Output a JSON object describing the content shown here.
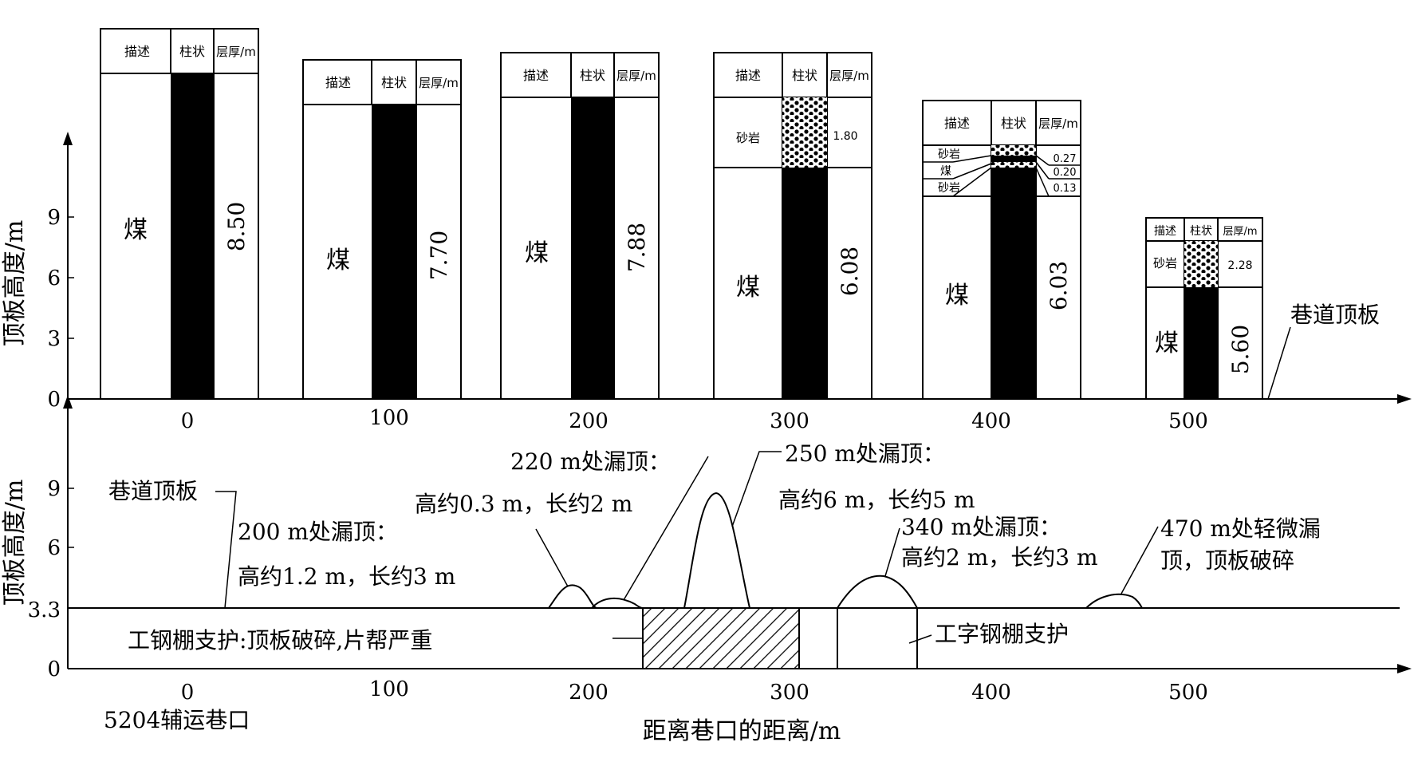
{
  "top_chart": {
    "ylabel": "顶板高度/m",
    "yticks": [
      "0",
      "3",
      "6",
      "9"
    ],
    "xticks": [
      "0",
      "100",
      "200",
      "300",
      "400",
      "500"
    ],
    "roof_label": "巷道顶板",
    "column_headers": {
      "desc": "描述",
      "column": "柱状",
      "thickness": "层厚/m"
    },
    "columns": [
      {
        "pos": 0,
        "coal": "煤",
        "coal_thickness": "8.50"
      },
      {
        "pos": 100,
        "coal": "煤",
        "coal_thickness": "7.70"
      },
      {
        "pos": 200,
        "coal": "煤",
        "coal_thickness": "7.88"
      },
      {
        "pos": 300,
        "coal": "煤",
        "coal_thickness": "6.08",
        "upper": [
          {
            "name": "砂岩",
            "thickness": "1.80"
          }
        ]
      },
      {
        "pos": 400,
        "coal": "煤",
        "coal_thickness": "6.03",
        "upper": [
          {
            "name": "砂岩",
            "thickness": "0.27"
          },
          {
            "name": "煤",
            "thickness": "0.20"
          },
          {
            "name": "砂岩",
            "thickness": "0.13"
          }
        ]
      },
      {
        "pos": 500,
        "coal": "煤",
        "coal_thickness": "5.60",
        "upper": [
          {
            "name": "砂岩",
            "thickness": "2.28"
          }
        ]
      }
    ]
  },
  "bottom_chart": {
    "ylabel": "顶板高度/m",
    "yticks": [
      "0",
      "3.3",
      "6",
      "9"
    ],
    "xticks": [
      "0",
      "100",
      "200",
      "300",
      "400",
      "500"
    ],
    "xlabel": "距离巷口的距离/m",
    "origin_label": "5204辅运巷口",
    "roof_label": "巷道顶板",
    "annotations": {
      "a200_title": "200 m处漏顶：",
      "a200_detail": "高约1.2 m，长约3 m",
      "a220_title": "220 m处漏顶：",
      "a220_detail": "高约0.3 m，长约2 m",
      "a250_title": "250 m处漏顶：",
      "a250_detail": "高约6 m，长约5 m",
      "a340_title": "340 m处漏顶：",
      "a340_detail": "高约2 m，长约3 m",
      "a470_line1": "470 m处轻微漏",
      "a470_line2": "顶，顶板破碎"
    },
    "support_left": "工钢棚支护:顶板破碎,片帮严重",
    "support_right": "工字钢棚支护"
  }
}
